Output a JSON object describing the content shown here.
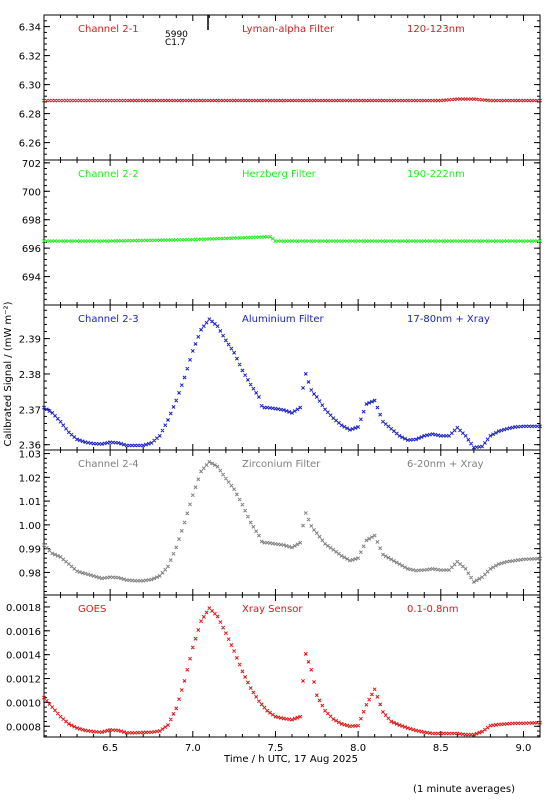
{
  "figure": {
    "ylabel": "Calibrated Signal / (mW m⁻²)",
    "xlabel": "Time / h UTC, 17 Aug 2025",
    "footnote": "(1 minute averages)",
    "marker": {
      "line1": "5990",
      "line2": "C1.7"
    }
  },
  "chart_data": [
    {
      "type": "scatter",
      "channel": "Channel 2-1",
      "filter": "Lyman-alpha Filter",
      "band": "120-123nm",
      "color": "#d42020",
      "ylim": [
        6.248,
        6.348
      ],
      "yticks": [
        6.26,
        6.28,
        6.3,
        6.32,
        6.34
      ],
      "ytick_labels": [
        "6.26",
        "6.28",
        "6.30",
        "6.32",
        "6.34"
      ],
      "xlim": [
        6.1,
        9.1
      ],
      "xticks": [
        6.5,
        7.0,
        7.5,
        8.0,
        8.5,
        9.0
      ],
      "points": [
        [
          6.1,
          6.289
        ],
        [
          6.5,
          6.289
        ],
        [
          7.0,
          6.289
        ],
        [
          7.5,
          6.289
        ],
        [
          8.0,
          6.289
        ],
        [
          8.5,
          6.289
        ],
        [
          8.6,
          6.29
        ],
        [
          8.7,
          6.29
        ],
        [
          8.8,
          6.289
        ],
        [
          9.1,
          6.289
        ]
      ]
    },
    {
      "type": "scatter",
      "channel": "Channel 2-2",
      "filter": "Herzberg Filter",
      "band": "190-222nm",
      "color": "#22ee22",
      "ylim": [
        692.0,
        702.2
      ],
      "yticks": [
        694,
        696,
        698,
        700,
        702
      ],
      "ytick_labels": [
        "694",
        "696",
        "698",
        "700",
        "702"
      ],
      "xlim": [
        6.1,
        9.1
      ],
      "xticks": [
        6.5,
        7.0,
        7.5,
        8.0,
        8.5,
        9.0
      ],
      "points": [
        [
          6.1,
          696.5
        ],
        [
          6.5,
          696.5
        ],
        [
          7.0,
          696.6
        ],
        [
          7.47,
          696.8
        ],
        [
          7.5,
          696.5
        ],
        [
          8.0,
          696.5
        ],
        [
          8.5,
          696.5
        ],
        [
          9.1,
          696.5
        ]
      ]
    },
    {
      "type": "scatter",
      "channel": "Channel 2-3",
      "filter": "Aluminium Filter",
      "band": "17-80nm + Xray",
      "color": "#1a22c8",
      "ylim": [
        2.3585,
        2.3995
      ],
      "yticks": [
        2.36,
        2.37,
        2.38,
        2.39
      ],
      "ytick_labels": [
        "2.36",
        "2.37",
        "2.38",
        "2.39"
      ],
      "xlim": [
        6.1,
        9.1
      ],
      "xticks": [
        6.5,
        7.0,
        7.5,
        8.0,
        8.5,
        9.0
      ],
      "points": [
        [
          6.1,
          2.3705
        ],
        [
          6.15,
          2.369
        ],
        [
          6.2,
          2.3665
        ],
        [
          6.25,
          2.3635
        ],
        [
          6.3,
          2.3615
        ],
        [
          6.35,
          2.3607
        ],
        [
          6.4,
          2.3603
        ],
        [
          6.45,
          2.3602
        ],
        [
          6.5,
          2.3607
        ],
        [
          6.55,
          2.3605
        ],
        [
          6.6,
          2.3598
        ],
        [
          6.65,
          2.3598
        ],
        [
          6.7,
          2.3598
        ],
        [
          6.75,
          2.3605
        ],
        [
          6.8,
          2.3625
        ],
        [
          6.85,
          2.367
        ],
        [
          6.9,
          2.3725
        ],
        [
          6.95,
          2.379
        ],
        [
          7.0,
          2.3865
        ],
        [
          7.05,
          2.3925
        ],
        [
          7.1,
          2.3955
        ],
        [
          7.15,
          2.3935
        ],
        [
          7.2,
          2.3895
        ],
        [
          7.25,
          2.386
        ],
        [
          7.3,
          2.381
        ],
        [
          7.35,
          2.377
        ],
        [
          7.4,
          2.3735
        ],
        [
          7.42,
          2.3705
        ],
        [
          7.45,
          2.3705
        ],
        [
          7.5,
          2.3702
        ],
        [
          7.55,
          2.3698
        ],
        [
          7.6,
          2.369
        ],
        [
          7.65,
          2.3705
        ],
        [
          7.68,
          2.3805
        ],
        [
          7.72,
          2.375
        ],
        [
          7.75,
          2.3735
        ],
        [
          7.8,
          2.37
        ],
        [
          7.85,
          2.3675
        ],
        [
          7.9,
          2.3655
        ],
        [
          7.95,
          2.3642
        ],
        [
          8.0,
          2.365
        ],
        [
          8.05,
          2.3715
        ],
        [
          8.1,
          2.3725
        ],
        [
          8.15,
          2.3665
        ],
        [
          8.2,
          2.3645
        ],
        [
          8.25,
          2.3625
        ],
        [
          8.3,
          2.3613
        ],
        [
          8.35,
          2.3615
        ],
        [
          8.4,
          2.3625
        ],
        [
          8.45,
          2.363
        ],
        [
          8.5,
          2.3625
        ],
        [
          8.55,
          2.3625
        ],
        [
          8.6,
          2.3648
        ],
        [
          8.65,
          2.3625
        ],
        [
          8.7,
          2.3592
        ],
        [
          8.75,
          2.3595
        ],
        [
          8.8,
          2.3625
        ],
        [
          8.85,
          2.3638
        ],
        [
          8.9,
          2.3645
        ],
        [
          8.95,
          2.365
        ],
        [
          9.0,
          2.3652
        ],
        [
          9.1,
          2.3652
        ]
      ]
    },
    {
      "type": "scatter",
      "channel": "Channel 2-4",
      "filter": "Zirconium Filter",
      "band": "6-20nm + Xray",
      "color": "#808080",
      "ylim": [
        0.9705,
        1.0315
      ],
      "yticks": [
        0.98,
        0.99,
        1.0,
        1.01,
        1.02,
        1.03
      ],
      "ytick_labels": [
        "0.98",
        "0.99",
        "1.00",
        "1.01",
        "1.02",
        "1.03"
      ],
      "xlim": [
        6.1,
        9.1
      ],
      "xticks": [
        6.5,
        7.0,
        7.5,
        8.0,
        8.5,
        9.0
      ],
      "points": [
        [
          6.1,
          0.9915
        ],
        [
          6.15,
          0.988
        ],
        [
          6.2,
          0.9865
        ],
        [
          6.25,
          0.9835
        ],
        [
          6.3,
          0.9805
        ],
        [
          6.35,
          0.9795
        ],
        [
          6.4,
          0.9785
        ],
        [
          6.45,
          0.9775
        ],
        [
          6.5,
          0.978
        ],
        [
          6.55,
          0.9778
        ],
        [
          6.6,
          0.9768
        ],
        [
          6.65,
          0.9765
        ],
        [
          6.7,
          0.9765
        ],
        [
          6.75,
          0.977
        ],
        [
          6.8,
          0.9785
        ],
        [
          6.85,
          0.9825
        ],
        [
          6.9,
          0.9905
        ],
        [
          6.95,
          1.001
        ],
        [
          7.0,
          1.0125
        ],
        [
          7.05,
          1.0225
        ],
        [
          7.1,
          1.0265
        ],
        [
          7.15,
          1.0245
        ],
        [
          7.2,
          1.0195
        ],
        [
          7.25,
          1.015
        ],
        [
          7.3,
          1.0085
        ],
        [
          7.35,
          1.001
        ],
        [
          7.4,
          0.9955
        ],
        [
          7.42,
          0.9925
        ],
        [
          7.45,
          0.9925
        ],
        [
          7.5,
          0.992
        ],
        [
          7.55,
          0.9915
        ],
        [
          7.6,
          0.9905
        ],
        [
          7.65,
          0.9925
        ],
        [
          7.68,
          1.0055
        ],
        [
          7.72,
          0.999
        ],
        [
          7.75,
          0.9965
        ],
        [
          7.8,
          0.992
        ],
        [
          7.85,
          0.9895
        ],
        [
          7.9,
          0.987
        ],
        [
          7.95,
          0.985
        ],
        [
          8.0,
          0.986
        ],
        [
          8.05,
          0.9935
        ],
        [
          8.1,
          0.9955
        ],
        [
          8.15,
          0.9875
        ],
        [
          8.2,
          0.9855
        ],
        [
          8.25,
          0.9835
        ],
        [
          8.3,
          0.9815
        ],
        [
          8.35,
          0.9808
        ],
        [
          8.4,
          0.981
        ],
        [
          8.45,
          0.9815
        ],
        [
          8.5,
          0.981
        ],
        [
          8.55,
          0.981
        ],
        [
          8.6,
          0.9845
        ],
        [
          8.65,
          0.9815
        ],
        [
          8.7,
          0.976
        ],
        [
          8.75,
          0.978
        ],
        [
          8.8,
          0.9815
        ],
        [
          8.85,
          0.9835
        ],
        [
          8.9,
          0.9845
        ],
        [
          8.95,
          0.985
        ],
        [
          9.0,
          0.9855
        ],
        [
          9.1,
          0.9858
        ]
      ]
    },
    {
      "type": "scatter",
      "channel": "GOES",
      "filter": "Xray Sensor",
      "band": "0.1-0.8nm",
      "color": "#e01818",
      "ylim": [
        0.00071,
        0.0019
      ],
      "yticks": [
        0.0008,
        0.001,
        0.0012,
        0.0014,
        0.0016,
        0.0018
      ],
      "ytick_labels": [
        "0.0008",
        "0.0010",
        "0.0012",
        "0.0014",
        "0.0016",
        "0.0018"
      ],
      "xlim": [
        6.1,
        9.1
      ],
      "xticks": [
        6.5,
        7.0,
        7.5,
        8.0,
        8.5,
        9.0
      ],
      "xtick_labels": [
        "6.5",
        "7.0",
        "7.5",
        "8.0",
        "8.5",
        "9.0"
      ],
      "points": [
        [
          6.1,
          0.00104
        ],
        [
          6.15,
          0.00096
        ],
        [
          6.2,
          0.00088
        ],
        [
          6.25,
          0.00082
        ],
        [
          6.3,
          0.000785
        ],
        [
          6.35,
          0.000765
        ],
        [
          6.4,
          0.000755
        ],
        [
          6.45,
          0.00075
        ],
        [
          6.5,
          0.00077
        ],
        [
          6.55,
          0.000765
        ],
        [
          6.6,
          0.000745
        ],
        [
          6.65,
          0.000745
        ],
        [
          6.7,
          0.000748
        ],
        [
          6.75,
          0.00075
        ],
        [
          6.8,
          0.00076
        ],
        [
          6.85,
          0.00081
        ],
        [
          6.9,
          0.00095
        ],
        [
          6.95,
          0.00118
        ],
        [
          7.0,
          0.00146
        ],
        [
          7.05,
          0.00168
        ],
        [
          7.1,
          0.00179
        ],
        [
          7.15,
          0.00172
        ],
        [
          7.2,
          0.00158
        ],
        [
          7.25,
          0.00143
        ],
        [
          7.3,
          0.00126
        ],
        [
          7.35,
          0.00112
        ],
        [
          7.4,
          0.00101
        ],
        [
          7.45,
          0.00093
        ],
        [
          7.5,
          0.00088
        ],
        [
          7.55,
          0.000865
        ],
        [
          7.6,
          0.000855
        ],
        [
          7.65,
          0.00088
        ],
        [
          7.68,
          0.00142
        ],
        [
          7.72,
          0.00126
        ],
        [
          7.75,
          0.00106
        ],
        [
          7.8,
          0.00093
        ],
        [
          7.85,
          0.00086
        ],
        [
          7.9,
          0.00082
        ],
        [
          7.95,
          0.0008
        ],
        [
          8.0,
          0.000805
        ],
        [
          8.05,
          0.00098
        ],
        [
          8.1,
          0.00111
        ],
        [
          8.15,
          0.00092
        ],
        [
          8.2,
          0.00084
        ],
        [
          8.25,
          0.00081
        ],
        [
          8.3,
          0.000785
        ],
        [
          8.35,
          0.000765
        ],
        [
          8.4,
          0.00075
        ],
        [
          8.45,
          0.00074
        ],
        [
          8.5,
          0.00074
        ],
        [
          8.55,
          0.00074
        ],
        [
          8.6,
          0.00074
        ],
        [
          8.65,
          0.00073
        ],
        [
          8.7,
          0.00073
        ],
        [
          8.75,
          0.000755
        ],
        [
          8.8,
          0.000805
        ],
        [
          8.85,
          0.000815
        ],
        [
          8.9,
          0.00082
        ],
        [
          8.95,
          0.000825
        ],
        [
          9.0,
          0.000825
        ],
        [
          9.1,
          0.00083
        ]
      ]
    }
  ]
}
